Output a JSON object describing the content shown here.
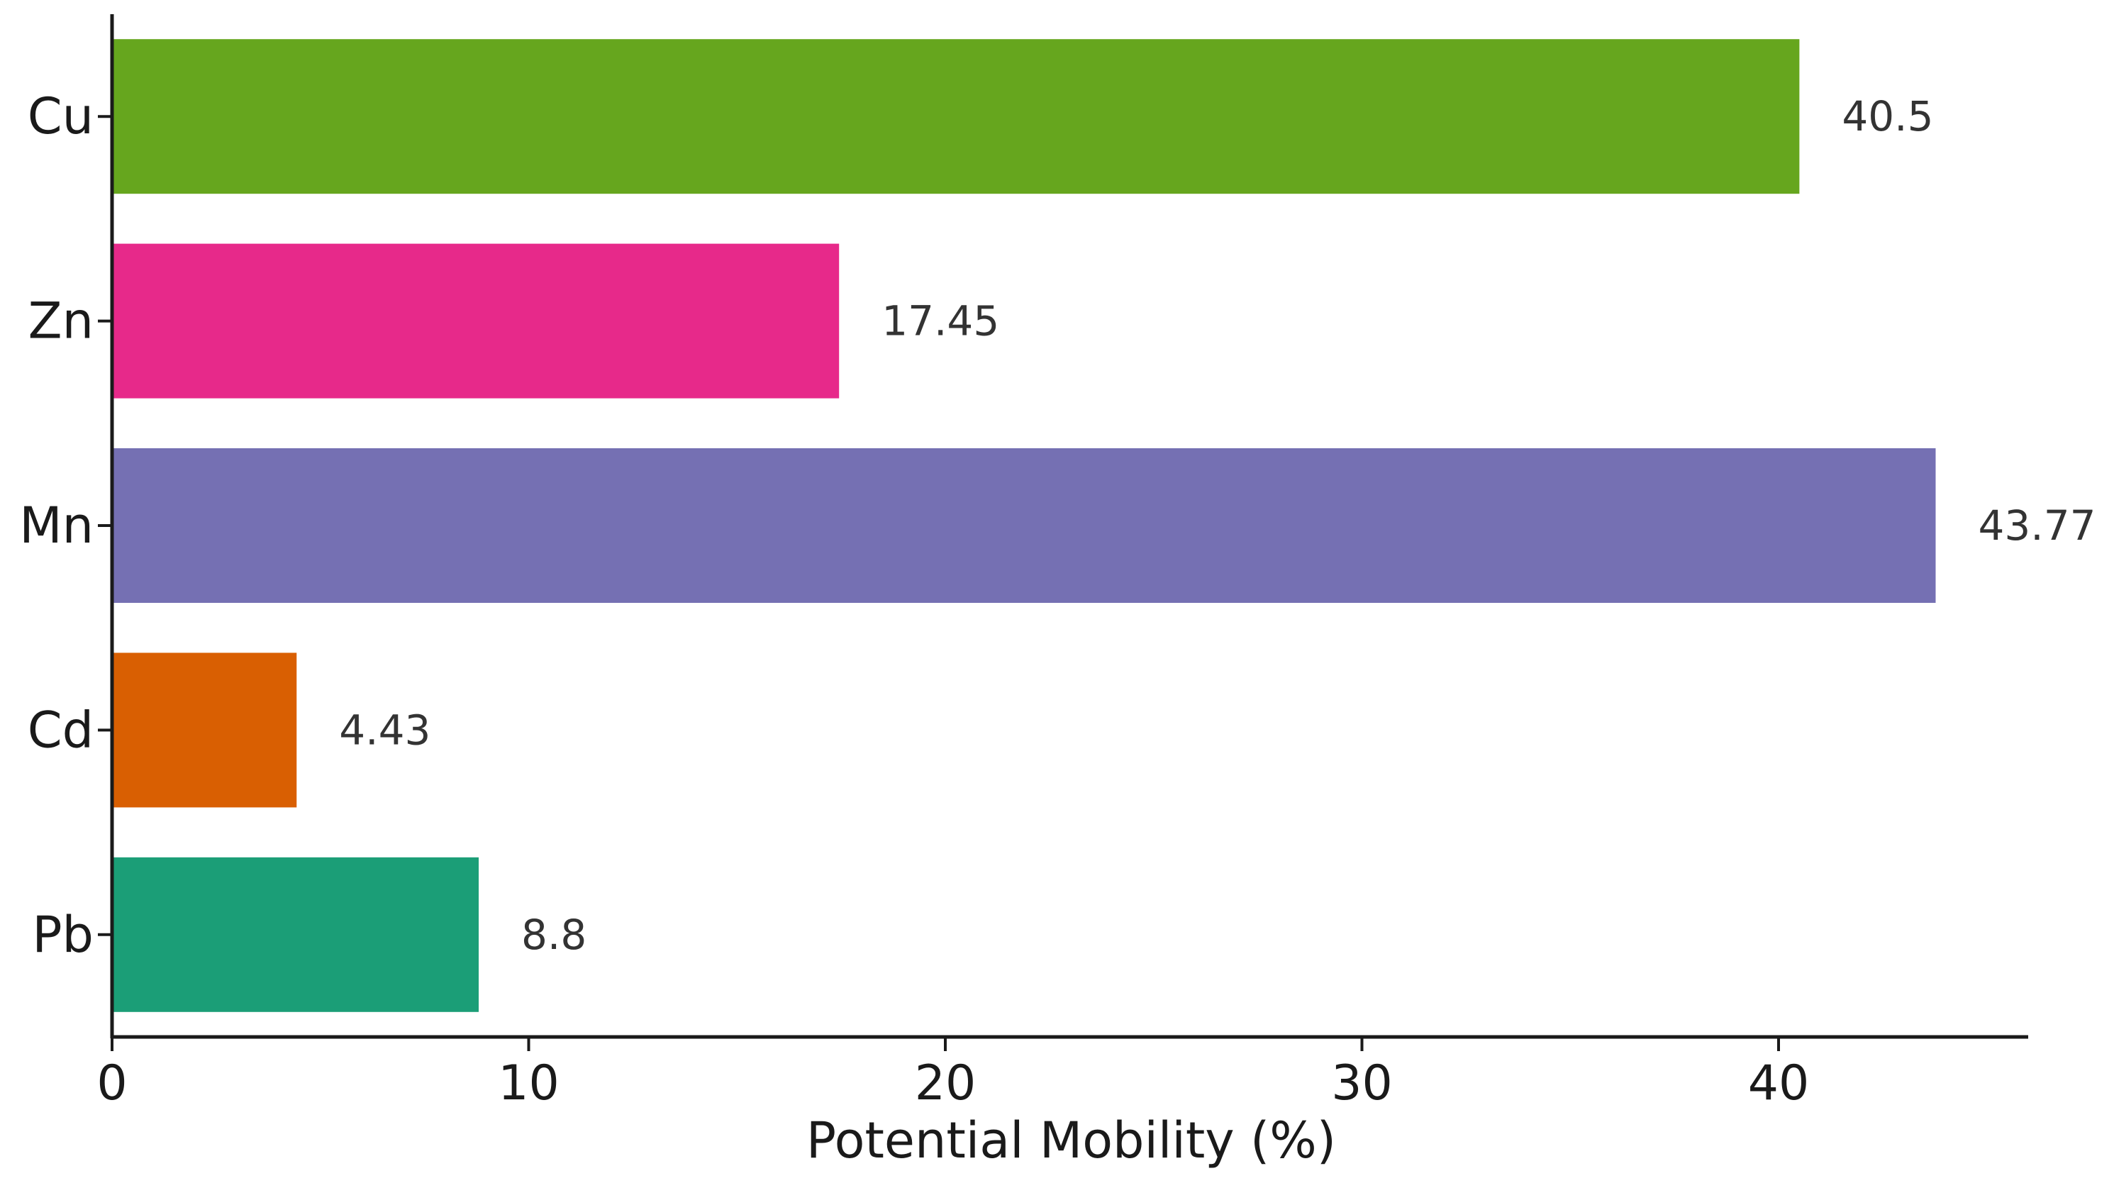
{
  "chart_data": {
    "type": "bar",
    "orientation": "horizontal",
    "title": "",
    "xlabel": "Potential Mobility (%)",
    "ylabel": "",
    "categories": [
      "Cu",
      "Zn",
      "Mn",
      "Cd",
      "Pb"
    ],
    "values": [
      40.5,
      17.45,
      43.77,
      4.43,
      8.8
    ],
    "value_labels": [
      "40.5",
      "17.45",
      "43.77",
      "4.43",
      "8.8"
    ],
    "colors": [
      "#66a61e",
      "#e7298a",
      "#7570b3",
      "#d95f02",
      "#1b9e77"
    ],
    "xlim": [
      0,
      46
    ],
    "xticks": [
      0,
      10,
      20,
      30,
      40
    ],
    "xtick_labels": [
      "0",
      "10",
      "20",
      "30",
      "40"
    ],
    "grid": false,
    "legend": "none"
  }
}
